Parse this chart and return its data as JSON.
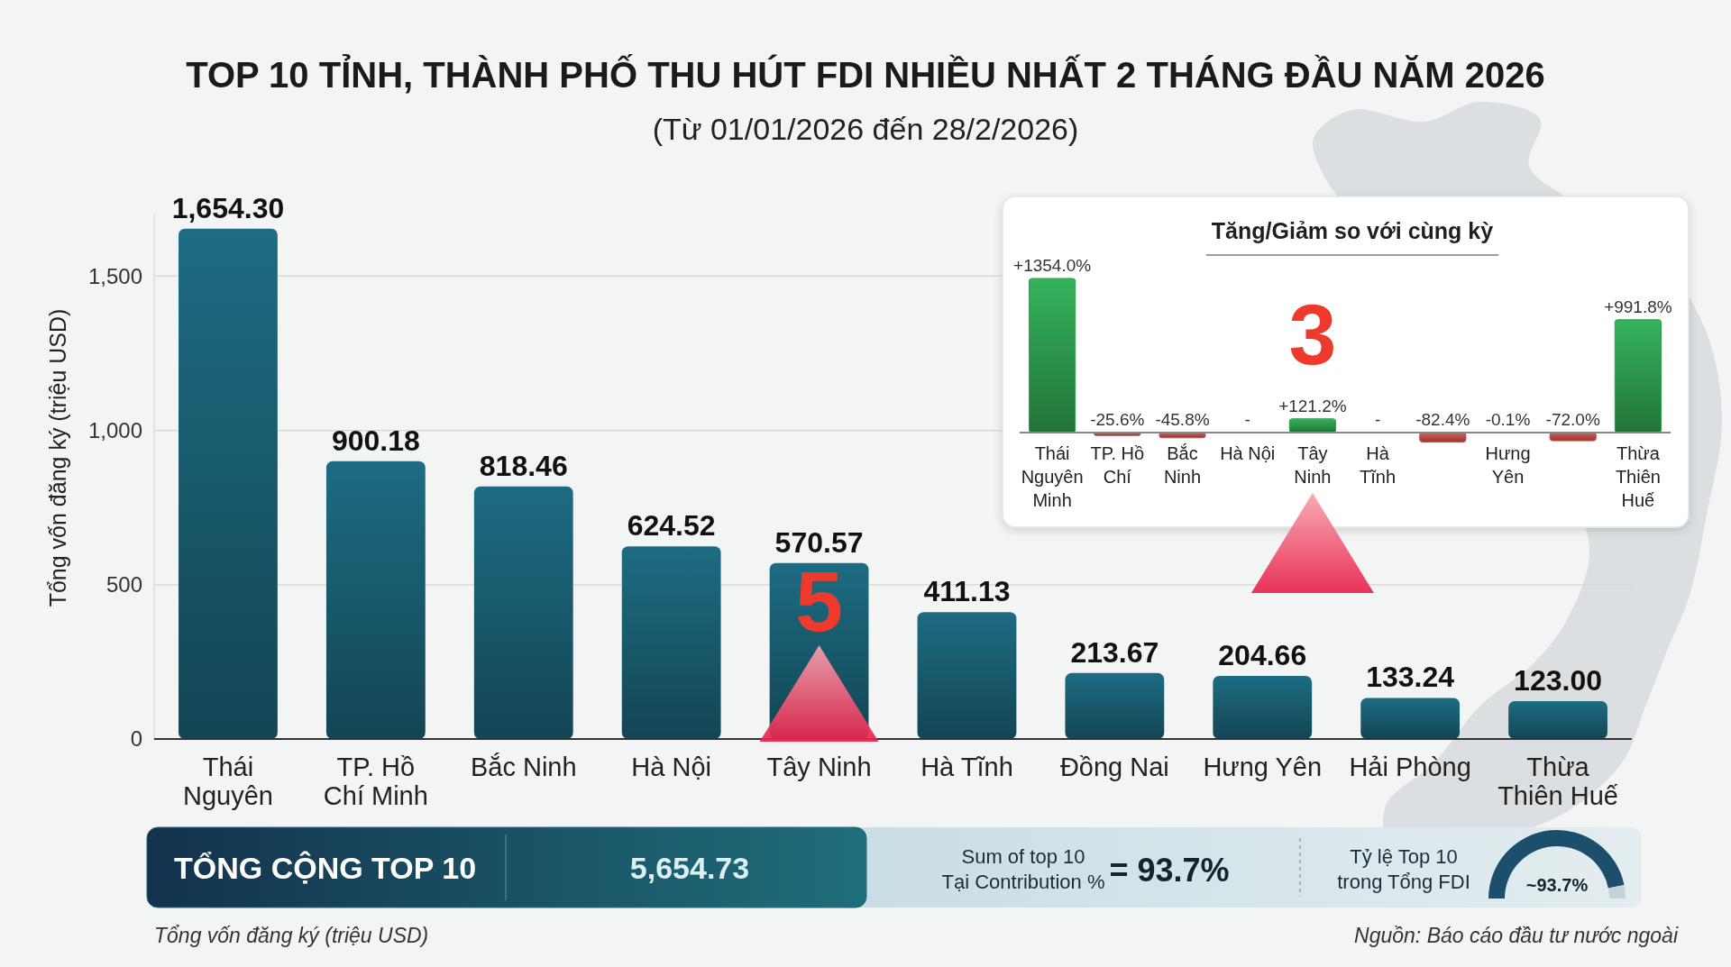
{
  "chart_data": [
    {
      "type": "bar",
      "title": "TOP 10 TỈNH, THÀNH PHỐ THU HÚT FDI NHIỀU NHẤT 2 THÁNG ĐẦU NĂM 2026",
      "subtitle": "(Từ 01/01/2026 đến 28/2/2026)",
      "ylabel": "Tổng vốn đăng ký (triệu USD)",
      "categories": [
        "Thái Nguyên",
        "TP. Hồ Chí Minh",
        "Bắc Ninh",
        "Hà Nội",
        "Tây Ninh",
        "Hà Tĩnh",
        "Đồng Nai",
        "Hưng Yên",
        "Hải Phòng",
        "Thừa Thiên Huế"
      ],
      "values": [
        1654.3,
        900.18,
        818.46,
        624.52,
        570.57,
        411.13,
        213.67,
        204.66,
        133.24,
        123.0
      ],
      "value_labels": [
        "1,654.30",
        "900.18",
        "818.46",
        "624.52",
        "570.57",
        "411.13",
        "213.67",
        "204.66",
        "133.24",
        "123.00"
      ],
      "color": "#1a5f74",
      "ylim": [
        0,
        1700
      ],
      "yticks": [
        0,
        500,
        {
          "value": 1000,
          "label": "1,000"
        },
        {
          "value": 1500,
          "label": "1,500"
        }
      ],
      "grid": "y",
      "annotations": [
        "5",
        "Tổng vốn đăng ký (triệu USD)",
        "Nguồn: Báo cáo đầu tư nước ngoài"
      ]
    },
    {
      "type": "bar",
      "title": "Tăng/Giảm so với cùng kỳ",
      "categories": [
        "Thái Nguyên Minh",
        "TP. Hồ Chí",
        "Bắc Ninh",
        "Hà Nội",
        "Tây Ninh",
        "Hà Tĩnh",
        null,
        "Hưng Yên",
        null,
        "Thừa Thiên Huế"
      ],
      "values": [
        1354.0,
        -25.6,
        -45.8,
        null,
        121.2,
        null,
        -82.4,
        -0.1,
        -72.0,
        991.8
      ],
      "value_labels": [
        "+1354.0%",
        "-25.6%",
        "-45.8%",
        "-",
        "+121.2%",
        "-",
        "-82.4%",
        "-0.1%",
        "-72.0%",
        "+991.8%"
      ],
      "colors": [
        "#2f9e50",
        "#c4504a",
        "#c4504a",
        "#c4504a",
        "#2f9e50",
        "#c4504a",
        "#c4504a",
        "#c4504a",
        "#c4504a",
        "#2f9e50"
      ],
      "annotations": [
        "3"
      ]
    },
    {
      "type": "other",
      "annotations": [
        "TỔNG CỘNG TOP 10",
        "5,654.73",
        "Sum of top 10",
        "Tại Contribution %",
        "= 93.7%",
        "Tỷ lệ Top 10",
        "trong Tổng FDI"
      ]
    },
    {
      "type": "donut",
      "categories": [
        null,
        null
      ],
      "values": [
        93.7,
        6.3
      ],
      "colors": [
        "#1c4f6b",
        "#c5d3d9"
      ],
      "value_labels": [
        "~93.7%",
        null
      ]
    }
  ]
}
